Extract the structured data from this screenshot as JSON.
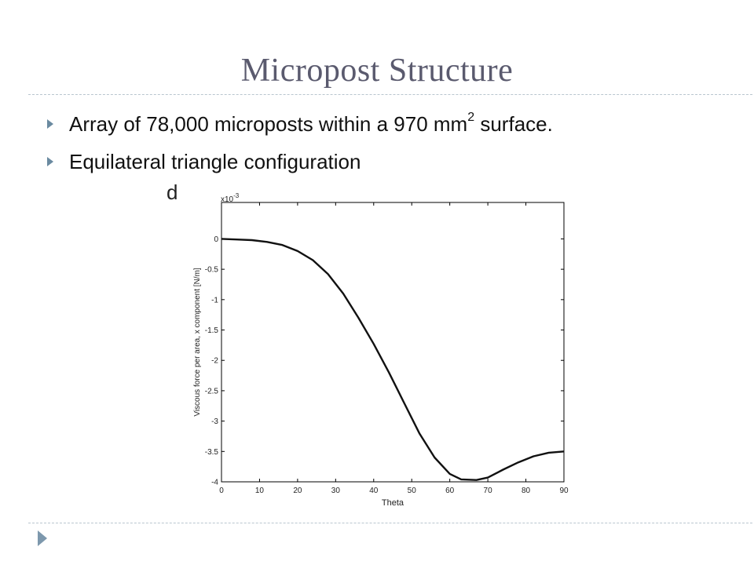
{
  "slide": {
    "title": "Micropost Structure",
    "bullets": [
      {
        "pre": "Array of 78,000 microposts within a 970 mm",
        "sup": "2",
        "post": " surface."
      },
      {
        "pre": "Equilateral triangle configuration",
        "sup": "",
        "post": ""
      }
    ]
  },
  "chart_data": {
    "type": "line",
    "panel_label": "d",
    "xlabel": "Theta",
    "ylabel": "Viscous force per area, x component [N/m]",
    "exponent_label": "x10",
    "exponent_power": "-3",
    "xlim": [
      0,
      90
    ],
    "ylim": [
      -4,
      0.6
    ],
    "xticks": [
      0,
      10,
      20,
      30,
      40,
      50,
      60,
      70,
      80,
      90
    ],
    "yticks": [
      0,
      -0.5,
      -1,
      -1.5,
      -2,
      -2.5,
      -3,
      -3.5,
      -4
    ],
    "grid": false,
    "series": [
      {
        "x": [
          0,
          4,
          8,
          12,
          16,
          20,
          24,
          28,
          32,
          36,
          40,
          44,
          48,
          52,
          56,
          60,
          63,
          67,
          70,
          74,
          78,
          82,
          86,
          90
        ],
        "y": [
          0,
          -0.01,
          -0.02,
          -0.05,
          -0.1,
          -0.2,
          -0.35,
          -0.58,
          -0.9,
          -1.3,
          -1.73,
          -2.2,
          -2.7,
          -3.2,
          -3.6,
          -3.87,
          -3.96,
          -3.97,
          -3.93,
          -3.8,
          -3.68,
          -3.58,
          -3.52,
          -3.5
        ]
      }
    ]
  }
}
